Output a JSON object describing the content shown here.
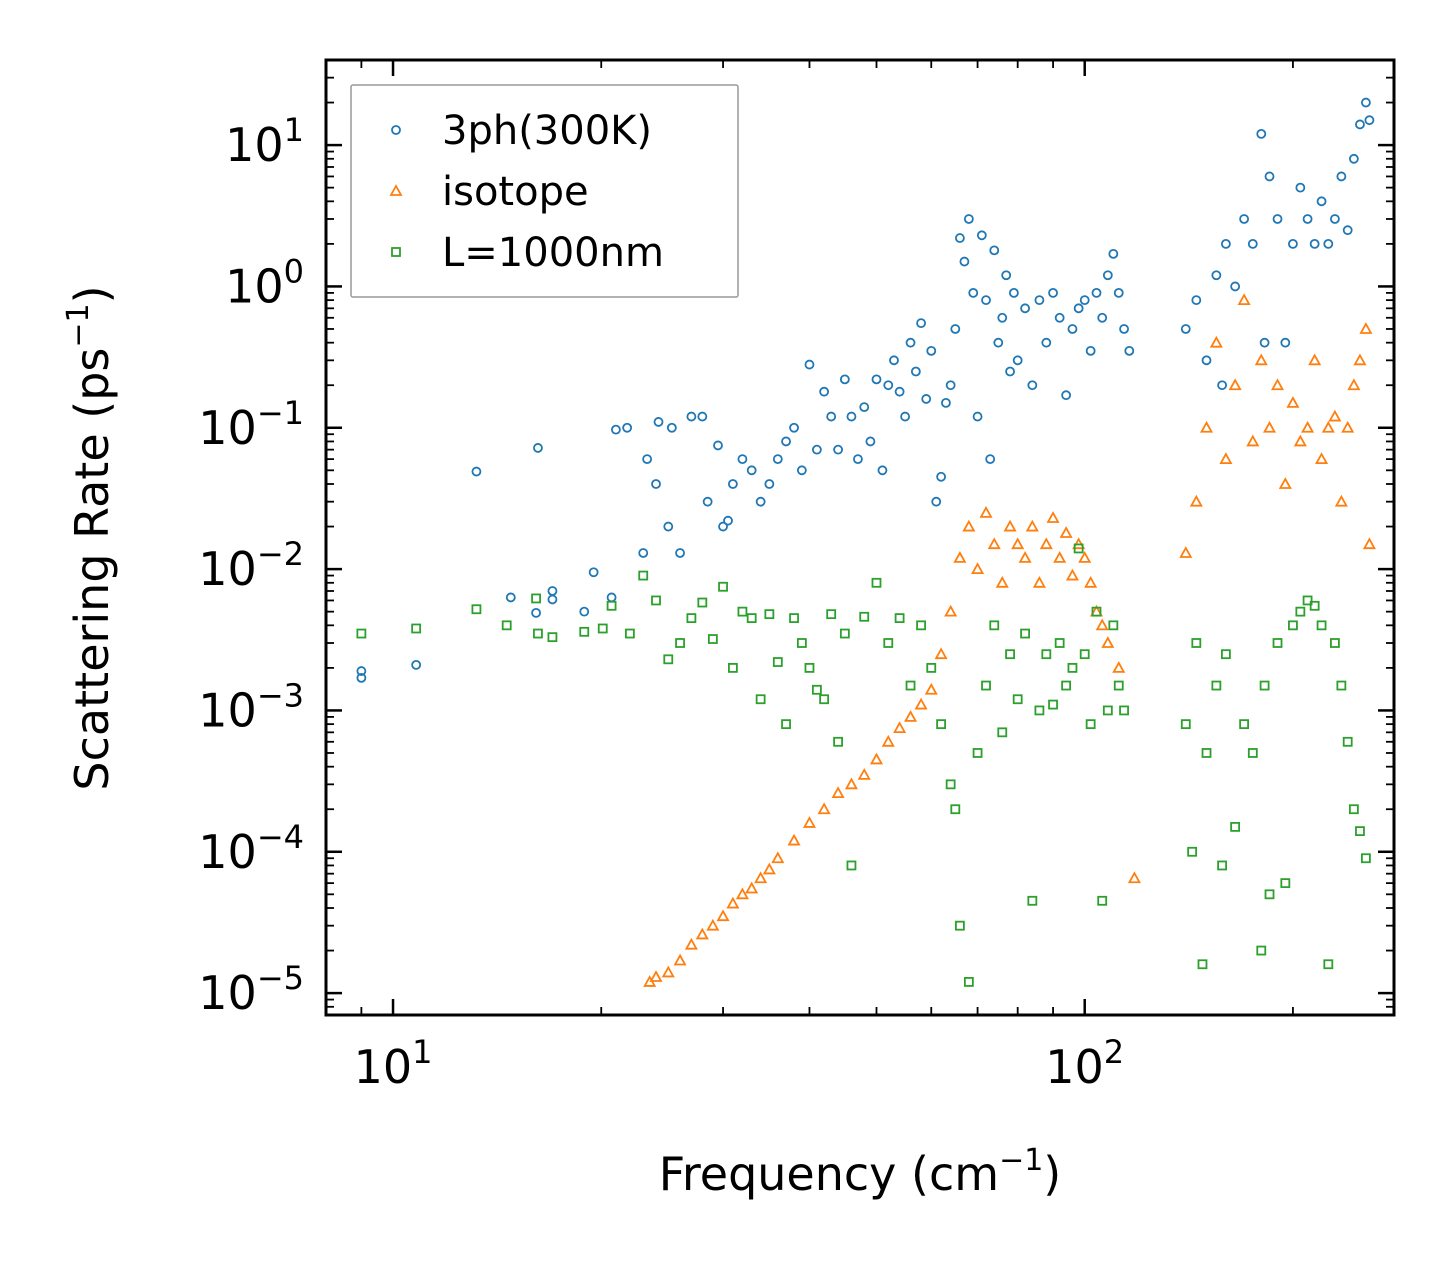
{
  "chart_data": {
    "type": "scatter",
    "xscale": "log",
    "yscale": "log",
    "xlim": [
      8,
      280
    ],
    "ylim": [
      7e-06,
      40
    ],
    "xlabel": "Frequency (cm⁻¹)",
    "xlabel_main": "Frequency (cm",
    "xlabel_sup": "−1",
    "xlabel_end": ")",
    "ylabel": "Scattering Rate (ps⁻¹)",
    "ylabel_main": "Scattering Rate (ps",
    "ylabel_sup": "−1",
    "ylabel_end": ")",
    "x_major_ticks": [
      {
        "value": 10,
        "base": "10",
        "exp": "1"
      },
      {
        "value": 100,
        "base": "10",
        "exp": "2"
      }
    ],
    "y_major_ticks": [
      {
        "value": 1e-05,
        "base": "10",
        "exp": "−5"
      },
      {
        "value": 0.0001,
        "base": "10",
        "exp": "−4"
      },
      {
        "value": 0.001,
        "base": "10",
        "exp": "−3"
      },
      {
        "value": 0.01,
        "base": "10",
        "exp": "−2"
      },
      {
        "value": 0.1,
        "base": "10",
        "exp": "−1"
      },
      {
        "value": 1,
        "base": "10",
        "exp": "0"
      },
      {
        "value": 10,
        "base": "10",
        "exp": "1"
      }
    ],
    "legend_position": "top-left",
    "series": [
      {
        "name": "3ph(300K)",
        "marker": "circle",
        "color": "#1f77b4",
        "points": [
          [
            9.0,
            0.0019
          ],
          [
            9.0,
            0.0017
          ],
          [
            10.8,
            0.0021
          ],
          [
            13.2,
            0.049
          ],
          [
            14.8,
            0.0063
          ],
          [
            16.2,
            0.072
          ],
          [
            16.1,
            0.0049
          ],
          [
            17.0,
            0.007
          ],
          [
            17.0,
            0.0061
          ],
          [
            18.9,
            0.005
          ],
          [
            19.5,
            0.0095
          ],
          [
            20.7,
            0.0063
          ],
          [
            21.0,
            0.097
          ],
          [
            21.8,
            0.1
          ],
          [
            23.0,
            0.013
          ],
          [
            23.3,
            0.06
          ],
          [
            24.0,
            0.04
          ],
          [
            24.2,
            0.11
          ],
          [
            25.0,
            0.02
          ],
          [
            25.3,
            0.1
          ],
          [
            26.0,
            0.013
          ],
          [
            27.0,
            0.12
          ],
          [
            28.0,
            0.12
          ],
          [
            28.5,
            0.03
          ],
          [
            29.5,
            0.075
          ],
          [
            30.0,
            0.02
          ],
          [
            30.5,
            0.022
          ],
          [
            31.0,
            0.04
          ],
          [
            32.0,
            0.06
          ],
          [
            33.0,
            0.05
          ],
          [
            34.0,
            0.03
          ],
          [
            35.0,
            0.04
          ],
          [
            36.0,
            0.06
          ],
          [
            37.0,
            0.08
          ],
          [
            38.0,
            0.1
          ],
          [
            39.0,
            0.05
          ],
          [
            40.0,
            0.28
          ],
          [
            41.0,
            0.07
          ],
          [
            42.0,
            0.18
          ],
          [
            43.0,
            0.12
          ],
          [
            44.0,
            0.07
          ],
          [
            45.0,
            0.22
          ],
          [
            46.0,
            0.12
          ],
          [
            47.0,
            0.06
          ],
          [
            48.0,
            0.14
          ],
          [
            49.0,
            0.08
          ],
          [
            50.0,
            0.22
          ],
          [
            51.0,
            0.05
          ],
          [
            52.0,
            0.2
          ],
          [
            53.0,
            0.3
          ],
          [
            54.0,
            0.18
          ],
          [
            55.0,
            0.12
          ],
          [
            56.0,
            0.4
          ],
          [
            57.0,
            0.25
          ],
          [
            58.0,
            0.55
          ],
          [
            59.0,
            0.16
          ],
          [
            60.0,
            0.35
          ],
          [
            61.0,
            0.03
          ],
          [
            62.0,
            0.045
          ],
          [
            63.0,
            0.15
          ],
          [
            64.0,
            0.2
          ],
          [
            65.0,
            0.5
          ],
          [
            66.0,
            2.2
          ],
          [
            67.0,
            1.5
          ],
          [
            68.0,
            3.0
          ],
          [
            69.0,
            0.9
          ],
          [
            70.0,
            0.12
          ],
          [
            71.0,
            2.3
          ],
          [
            72.0,
            0.8
          ],
          [
            73.0,
            0.06
          ],
          [
            74.0,
            1.8
          ],
          [
            75.0,
            0.4
          ],
          [
            76.0,
            0.6
          ],
          [
            77.0,
            1.2
          ],
          [
            78.0,
            0.25
          ],
          [
            79.0,
            0.9
          ],
          [
            80.0,
            0.3
          ],
          [
            82.0,
            0.7
          ],
          [
            84.0,
            0.2
          ],
          [
            86.0,
            0.8
          ],
          [
            88.0,
            0.4
          ],
          [
            90.0,
            0.9
          ],
          [
            92.0,
            0.6
          ],
          [
            94.0,
            0.17
          ],
          [
            96.0,
            0.5
          ],
          [
            98.0,
            0.7
          ],
          [
            100.0,
            0.8
          ],
          [
            102.0,
            0.35
          ],
          [
            104.0,
            0.9
          ],
          [
            106.0,
            0.6
          ],
          [
            108.0,
            1.2
          ],
          [
            110.0,
            1.7
          ],
          [
            112.0,
            0.9
          ],
          [
            114.0,
            0.5
          ],
          [
            116.0,
            0.35
          ],
          [
            140.0,
            0.5
          ],
          [
            145.0,
            0.8
          ],
          [
            150.0,
            0.3
          ],
          [
            155.0,
            1.2
          ],
          [
            158.0,
            0.2
          ],
          [
            160.0,
            2.0
          ],
          [
            165.0,
            1.0
          ],
          [
            170.0,
            3.0
          ],
          [
            175.0,
            2.0
          ],
          [
            180.0,
            12.0
          ],
          [
            182.0,
            0.4
          ],
          [
            185.0,
            6.0
          ],
          [
            190.0,
            3.0
          ],
          [
            195.0,
            0.4
          ],
          [
            200.0,
            2.0
          ],
          [
            205.0,
            5.0
          ],
          [
            210.0,
            3.0
          ],
          [
            215.0,
            2.0
          ],
          [
            220.0,
            4.0
          ],
          [
            225.0,
            2.0
          ],
          [
            230.0,
            3.0
          ],
          [
            235.0,
            6.0
          ],
          [
            240.0,
            2.5
          ],
          [
            245.0,
            8.0
          ],
          [
            250.0,
            14.0
          ],
          [
            255.0,
            20.0
          ],
          [
            258.0,
            15.0
          ]
        ]
      },
      {
        "name": "isotope",
        "marker": "triangle",
        "color": "#ff7f0e",
        "points": [
          [
            23.5,
            1.2e-05
          ],
          [
            24.0,
            1.3e-05
          ],
          [
            25.0,
            1.4e-05
          ],
          [
            26.0,
            1.7e-05
          ],
          [
            27.0,
            2.2e-05
          ],
          [
            28.0,
            2.6e-05
          ],
          [
            29.0,
            3e-05
          ],
          [
            30.0,
            3.5e-05
          ],
          [
            31.0,
            4.3e-05
          ],
          [
            32.0,
            5e-05
          ],
          [
            33.0,
            5.5e-05
          ],
          [
            34.0,
            6.5e-05
          ],
          [
            35.0,
            7.5e-05
          ],
          [
            36.0,
            9e-05
          ],
          [
            38.0,
            0.00012
          ],
          [
            40.0,
            0.00016
          ],
          [
            42.0,
            0.0002
          ],
          [
            44.0,
            0.00026
          ],
          [
            46.0,
            0.0003
          ],
          [
            48.0,
            0.00035
          ],
          [
            50.0,
            0.00045
          ],
          [
            52.0,
            0.0006
          ],
          [
            54.0,
            0.00075
          ],
          [
            56.0,
            0.0009
          ],
          [
            58.0,
            0.0011
          ],
          [
            60.0,
            0.0014
          ],
          [
            62.0,
            0.0025
          ],
          [
            64.0,
            0.005
          ],
          [
            66.0,
            0.012
          ],
          [
            68.0,
            0.02
          ],
          [
            70.0,
            0.01
          ],
          [
            72.0,
            0.025
          ],
          [
            74.0,
            0.015
          ],
          [
            76.0,
            0.008
          ],
          [
            78.0,
            0.02
          ],
          [
            80.0,
            0.015
          ],
          [
            82.0,
            0.012
          ],
          [
            84.0,
            0.02
          ],
          [
            86.0,
            0.008
          ],
          [
            88.0,
            0.015
          ],
          [
            90.0,
            0.023
          ],
          [
            92.0,
            0.012
          ],
          [
            94.0,
            0.018
          ],
          [
            96.0,
            0.009
          ],
          [
            98.0,
            0.015
          ],
          [
            100.0,
            0.012
          ],
          [
            102.0,
            0.008
          ],
          [
            104.0,
            0.005
          ],
          [
            106.0,
            0.004
          ],
          [
            108.0,
            0.003
          ],
          [
            112.0,
            0.002
          ],
          [
            118.0,
            6.5e-05
          ],
          [
            140.0,
            0.013
          ],
          [
            145.0,
            0.03
          ],
          [
            150.0,
            0.1
          ],
          [
            155.0,
            0.4
          ],
          [
            160.0,
            0.06
          ],
          [
            165.0,
            0.2
          ],
          [
            170.0,
            0.8
          ],
          [
            175.0,
            0.08
          ],
          [
            180.0,
            0.3
          ],
          [
            185.0,
            0.1
          ],
          [
            190.0,
            0.2
          ],
          [
            195.0,
            0.04
          ],
          [
            200.0,
            0.15
          ],
          [
            205.0,
            0.08
          ],
          [
            210.0,
            0.1
          ],
          [
            215.0,
            0.3
          ],
          [
            220.0,
            0.06
          ],
          [
            225.0,
            0.1
          ],
          [
            230.0,
            0.12
          ],
          [
            235.0,
            0.03
          ],
          [
            240.0,
            0.1
          ],
          [
            245.0,
            0.2
          ],
          [
            250.0,
            0.3
          ],
          [
            255.0,
            0.5
          ],
          [
            258.0,
            0.015
          ]
        ]
      },
      {
        "name": "L=1000nm",
        "marker": "square",
        "color": "#2ca02c",
        "points": [
          [
            9.0,
            0.0035
          ],
          [
            10.8,
            0.0038
          ],
          [
            13.2,
            0.0052
          ],
          [
            14.6,
            0.004
          ],
          [
            16.1,
            0.0062
          ],
          [
            16.2,
            0.0035
          ],
          [
            17.0,
            0.0033
          ],
          [
            18.9,
            0.0036
          ],
          [
            20.1,
            0.0038
          ],
          [
            20.7,
            0.0055
          ],
          [
            22.0,
            0.0035
          ],
          [
            23.0,
            0.009
          ],
          [
            24.0,
            0.006
          ],
          [
            25.0,
            0.0023
          ],
          [
            26.0,
            0.003
          ],
          [
            27.0,
            0.0045
          ],
          [
            28.0,
            0.0058
          ],
          [
            29.0,
            0.0032
          ],
          [
            30.0,
            0.0075
          ],
          [
            31.0,
            0.002
          ],
          [
            32.0,
            0.005
          ],
          [
            33.0,
            0.0045
          ],
          [
            34.0,
            0.0012
          ],
          [
            35.0,
            0.0048
          ],
          [
            36.0,
            0.0022
          ],
          [
            37.0,
            0.0008
          ],
          [
            38.0,
            0.0045
          ],
          [
            39.0,
            0.003
          ],
          [
            40.0,
            0.002
          ],
          [
            41.0,
            0.0014
          ],
          [
            42.0,
            0.0012
          ],
          [
            43.0,
            0.0048
          ],
          [
            44.0,
            0.0006
          ],
          [
            45.0,
            0.0035
          ],
          [
            46.0,
            8e-05
          ],
          [
            48.0,
            0.0046
          ],
          [
            50.0,
            0.008
          ],
          [
            52.0,
            0.003
          ],
          [
            54.0,
            0.0045
          ],
          [
            56.0,
            0.0015
          ],
          [
            58.0,
            0.004
          ],
          [
            60.0,
            0.002
          ],
          [
            62.0,
            0.0008
          ],
          [
            64.0,
            0.0003
          ],
          [
            65.0,
            0.0002
          ],
          [
            66.0,
            3e-05
          ],
          [
            68.0,
            1.2e-05
          ],
          [
            70.0,
            0.0005
          ],
          [
            72.0,
            0.0015
          ],
          [
            74.0,
            0.004
          ],
          [
            76.0,
            0.0007
          ],
          [
            78.0,
            0.0025
          ],
          [
            80.0,
            0.0012
          ],
          [
            82.0,
            0.0035
          ],
          [
            84.0,
            4.5e-05
          ],
          [
            86.0,
            0.001
          ],
          [
            88.0,
            0.0025
          ],
          [
            90.0,
            0.0011
          ],
          [
            92.0,
            0.003
          ],
          [
            94.0,
            0.0015
          ],
          [
            96.0,
            0.002
          ],
          [
            98.0,
            0.014
          ],
          [
            100.0,
            0.0025
          ],
          [
            102.0,
            0.0008
          ],
          [
            104.0,
            0.005
          ],
          [
            106.0,
            4.5e-05
          ],
          [
            108.0,
            0.001
          ],
          [
            110.0,
            0.004
          ],
          [
            112.0,
            0.0015
          ],
          [
            114.0,
            0.001
          ],
          [
            140.0,
            0.0008
          ],
          [
            143.0,
            0.0001
          ],
          [
            145.0,
            0.003
          ],
          [
            148.0,
            1.6e-05
          ],
          [
            150.0,
            0.0005
          ],
          [
            155.0,
            0.0015
          ],
          [
            158.0,
            8e-05
          ],
          [
            160.0,
            0.0025
          ],
          [
            165.0,
            0.00015
          ],
          [
            170.0,
            0.0008
          ],
          [
            175.0,
            0.0005
          ],
          [
            180.0,
            2e-05
          ],
          [
            182.0,
            0.0015
          ],
          [
            185.0,
            5e-05
          ],
          [
            190.0,
            0.003
          ],
          [
            195.0,
            6e-05
          ],
          [
            200.0,
            0.004
          ],
          [
            205.0,
            0.005
          ],
          [
            210.0,
            0.006
          ],
          [
            215.0,
            0.0055
          ],
          [
            220.0,
            0.004
          ],
          [
            225.0,
            1.6e-05
          ],
          [
            230.0,
            0.003
          ],
          [
            235.0,
            0.0015
          ],
          [
            240.0,
            0.0006
          ],
          [
            245.0,
            0.0002
          ],
          [
            250.0,
            0.00014
          ],
          [
            255.0,
            9e-05
          ]
        ]
      }
    ]
  }
}
